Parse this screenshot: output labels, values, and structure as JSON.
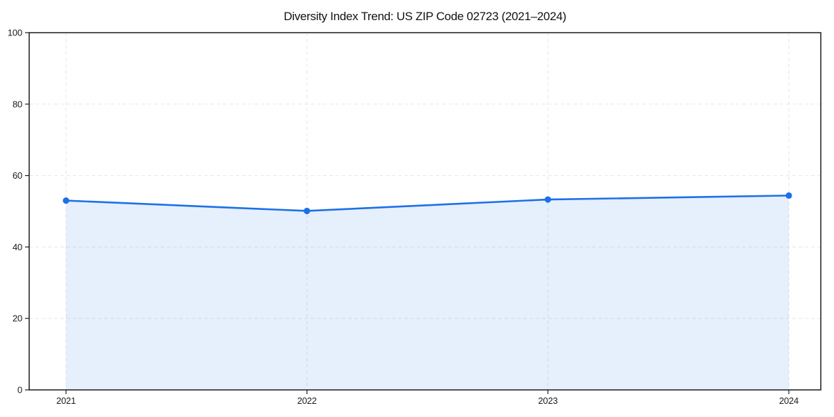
{
  "chart_data": {
    "type": "area",
    "title": "Diversity Index Trend: US ZIP Code 02723 (2021–2024)",
    "categories": [
      "2021",
      "2022",
      "2023",
      "2024"
    ],
    "values": [
      53.0,
      50.1,
      53.3,
      54.4
    ],
    "xlabel": "",
    "ylabel": "",
    "ylim": [
      0,
      100
    ],
    "yticks": [
      0,
      20,
      40,
      60,
      80,
      100
    ],
    "grid": "dashed light gray, horizontal and vertical",
    "legend": "none",
    "marker": "filled circle",
    "colors": {
      "line": "#1c70e8",
      "marker": "#1c70e8",
      "area_fill": "#1c70e8",
      "area_fill_opacity": 0.11,
      "grid": "#e6e6e6",
      "axis_frame": "#1a1a1a",
      "tick_text": "#1a1a1a",
      "title_text": "#111111",
      "background": "#ffffff"
    }
  }
}
